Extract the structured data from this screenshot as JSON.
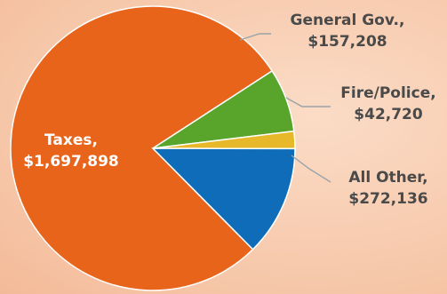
{
  "chart_data": {
    "type": "pie",
    "title": "",
    "slices": [
      {
        "label": "Taxes,",
        "value_text": "$1,697,898",
        "value": 1697898,
        "color": "#E8641B"
      },
      {
        "label": "General Gov.,",
        "value_text": "$157,208",
        "value": 157208,
        "color": "#59A52C"
      },
      {
        "label": "Fire/Police,",
        "value_text": "$42,720",
        "value": 42720,
        "color": "#E6B82A"
      },
      {
        "label": "All Other,",
        "value_text": "$272,136",
        "value": 272136,
        "color": "#0F6CB8"
      }
    ],
    "legend": "none (direct labels)"
  }
}
